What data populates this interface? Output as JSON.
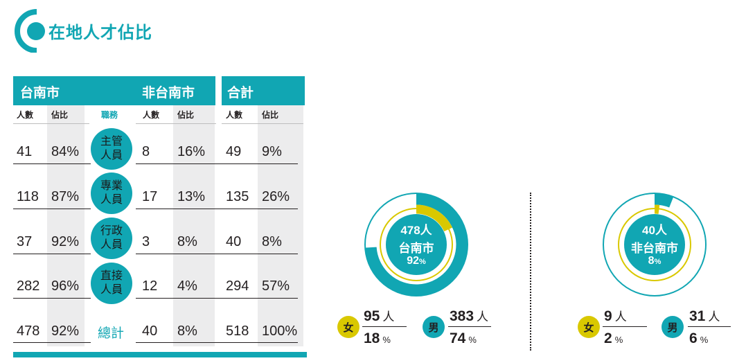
{
  "header": {
    "title": "在地人才佔比"
  },
  "table": {
    "groups": {
      "tainan": "台南市",
      "non_tainan": "非台南市",
      "total": "合計"
    },
    "columns": {
      "count": "人數",
      "share": "佔比",
      "role": "職務"
    },
    "rows": [
      {
        "role_line1": "主管",
        "role_line2": "人員",
        "tn_count": "41",
        "tn_pct": "84%",
        "nt_count": "8",
        "nt_pct": "16%",
        "tot_count": "49",
        "tot_pct": "9%"
      },
      {
        "role_line1": "專業",
        "role_line2": "人員",
        "tn_count": "118",
        "tn_pct": "87%",
        "nt_count": "17",
        "nt_pct": "13%",
        "tot_count": "135",
        "tot_pct": "26%"
      },
      {
        "role_line1": "行政",
        "role_line2": "人員",
        "tn_count": "37",
        "tn_pct": "92%",
        "nt_count": "3",
        "nt_pct": "8%",
        "tot_count": "40",
        "tot_pct": "8%"
      },
      {
        "role_line1": "直接",
        "role_line2": "人員",
        "tn_count": "282",
        "tn_pct": "96%",
        "nt_count": "12",
        "nt_pct": "4%",
        "tot_count": "294",
        "tot_pct": "57%"
      }
    ],
    "total_row": {
      "label": "總計",
      "tn_count": "478",
      "tn_pct": "92%",
      "nt_count": "40",
      "nt_pct": "8%",
      "tot_count": "518",
      "tot_pct": "100%"
    }
  },
  "donuts": [
    {
      "center_line1": "478人",
      "center_line2": "台南市",
      "center_pct": "92",
      "pct_sign": "%",
      "female_share": 0.18,
      "male_share": 0.74,
      "female": {
        "label": "女",
        "count": "95",
        "unit": "人",
        "pct": "18",
        "pct_unit": "%"
      },
      "male": {
        "label": "男",
        "count": "383",
        "unit": "人",
        "pct": "74",
        "pct_unit": "%"
      }
    },
    {
      "center_line1": "40人",
      "center_line2": "非台南市",
      "center_pct": "8",
      "pct_sign": "%",
      "female_share": 0.02,
      "male_share": 0.06,
      "female": {
        "label": "女",
        "count": "9",
        "unit": "人",
        "pct": "2",
        "pct_unit": "%"
      },
      "male": {
        "label": "男",
        "count": "31",
        "unit": "人",
        "pct": "6",
        "pct_unit": "%"
      }
    }
  ],
  "colors": {
    "teal": "#11a6b3",
    "yellow": "#d9c800",
    "shade": "#ececed"
  }
}
